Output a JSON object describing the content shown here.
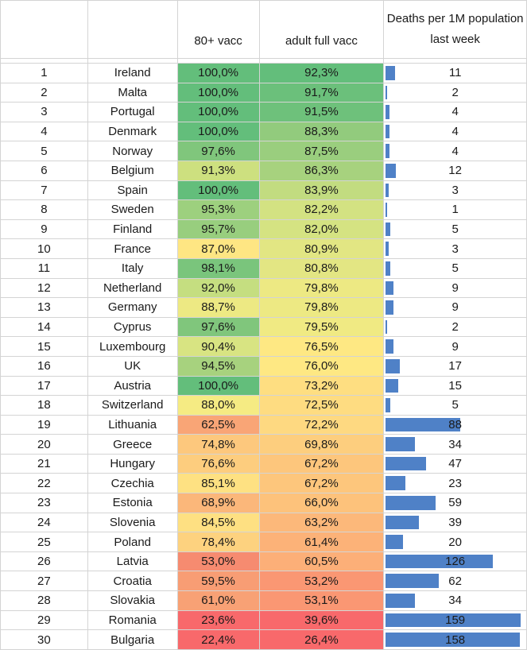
{
  "headers": {
    "rank": "",
    "country": "",
    "vacc80": "80+ vacc",
    "adult": "adult full vacc",
    "deaths": "Deaths per 1M population last week"
  },
  "deaths_max": 159,
  "rows": [
    {
      "rank": "1",
      "country": "Ireland",
      "vacc80": "100,0%",
      "adult": "92,3%",
      "deaths": "11",
      "vacc80_color": "#63be7b",
      "adult_color": "#63be7b"
    },
    {
      "rank": "2",
      "country": "Malta",
      "vacc80": "100,0%",
      "adult": "91,7%",
      "deaths": "2",
      "vacc80_color": "#63be7b",
      "adult_color": "#6bc07b"
    },
    {
      "rank": "3",
      "country": "Portugal",
      "vacc80": "100,0%",
      "adult": "91,5%",
      "deaths": "4",
      "vacc80_color": "#63be7b",
      "adult_color": "#6ec17b"
    },
    {
      "rank": "4",
      "country": "Denmark",
      "vacc80": "100,0%",
      "adult": "88,3%",
      "deaths": "4",
      "vacc80_color": "#63be7b",
      "adult_color": "#92cb7d"
    },
    {
      "rank": "5",
      "country": "Norway",
      "vacc80": "97,6%",
      "adult": "87,5%",
      "deaths": "4",
      "vacc80_color": "#80c67c",
      "adult_color": "#9ace7e"
    },
    {
      "rank": "6",
      "country": "Belgium",
      "vacc80": "91,3%",
      "adult": "86,3%",
      "deaths": "12",
      "vacc80_color": "#cde07f",
      "adult_color": "#a7d27e"
    },
    {
      "rank": "7",
      "country": "Spain",
      "vacc80": "100,0%",
      "adult": "83,9%",
      "deaths": "3",
      "vacc80_color": "#63be7b",
      "adult_color": "#c2dc80"
    },
    {
      "rank": "8",
      "country": "Sweden",
      "vacc80": "95,3%",
      "adult": "82,2%",
      "deaths": "1",
      "vacc80_color": "#9dd07e",
      "adult_color": "#d3e282"
    },
    {
      "rank": "9",
      "country": "Finland",
      "vacc80": "95,7%",
      "adult": "82,0%",
      "deaths": "5",
      "vacc80_color": "#98ce7e",
      "adult_color": "#d5e382"
    },
    {
      "rank": "10",
      "country": "France",
      "vacc80": "87,0%",
      "adult": "80,9%",
      "deaths": "3",
      "vacc80_color": "#fee683",
      "adult_color": "#e2e683"
    },
    {
      "rank": "11",
      "country": "Italy",
      "vacc80": "98,1%",
      "adult": "80,8%",
      "deaths": "5",
      "vacc80_color": "#7ac57c",
      "adult_color": "#e3e683"
    },
    {
      "rank": "12",
      "country": "Netherland",
      "vacc80": "92,0%",
      "adult": "79,8%",
      "deaths": "9",
      "vacc80_color": "#c5de80",
      "adult_color": "#ede983"
    },
    {
      "rank": "13",
      "country": "Germany",
      "vacc80": "88,7%",
      "adult": "79,8%",
      "deaths": "9",
      "vacc80_color": "#ede983",
      "adult_color": "#ede983"
    },
    {
      "rank": "14",
      "country": "Cyprus",
      "vacc80": "97,6%",
      "adult": "79,5%",
      "deaths": "2",
      "vacc80_color": "#80c67c",
      "adult_color": "#f0ea83"
    },
    {
      "rank": "15",
      "country": "Luxembourg",
      "vacc80": "90,4%",
      "adult": "76,5%",
      "deaths": "9",
      "vacc80_color": "#d8e482",
      "adult_color": "#fee883"
    },
    {
      "rank": "16",
      "country": "UK",
      "vacc80": "94,5%",
      "adult": "76,0%",
      "deaths": "17",
      "vacc80_color": "#a7d27e",
      "adult_color": "#fee883"
    },
    {
      "rank": "17",
      "country": "Austria",
      "vacc80": "100,0%",
      "adult": "73,2%",
      "deaths": "15",
      "vacc80_color": "#63be7b",
      "adult_color": "#fede81"
    },
    {
      "rank": "18",
      "country": "Switzerland",
      "vacc80": "88,0%",
      "adult": "72,5%",
      "deaths": "5",
      "vacc80_color": "#f5eb83",
      "adult_color": "#fedc81"
    },
    {
      "rank": "19",
      "country": "Lithuania",
      "vacc80": "62,5%",
      "adult": "72,2%",
      "deaths": "88",
      "vacc80_color": "#f9a576",
      "adult_color": "#fed981"
    },
    {
      "rank": "20",
      "country": "Greece",
      "vacc80": "74,8%",
      "adult": "69,8%",
      "deaths": "34",
      "vacc80_color": "#fdc87d",
      "adult_color": "#fdce7e"
    },
    {
      "rank": "21",
      "country": "Hungary",
      "vacc80": "76,6%",
      "adult": "67,2%",
      "deaths": "47",
      "vacc80_color": "#fdcd7e",
      "adult_color": "#fdc67c"
    },
    {
      "rank": "22",
      "country": "Czechia",
      "vacc80": "85,1%",
      "adult": "67,2%",
      "deaths": "23",
      "vacc80_color": "#fee182",
      "adult_color": "#fdc67c"
    },
    {
      "rank": "23",
      "country": "Estonia",
      "vacc80": "68,9%",
      "adult": "66,0%",
      "deaths": "59",
      "vacc80_color": "#fbb77a",
      "adult_color": "#fdc27b"
    },
    {
      "rank": "24",
      "country": "Slovenia",
      "vacc80": "84,5%",
      "adult": "63,2%",
      "deaths": "39",
      "vacc80_color": "#fee082",
      "adult_color": "#fcb87a"
    },
    {
      "rank": "25",
      "country": "Poland",
      "vacc80": "78,4%",
      "adult": "61,4%",
      "deaths": "20",
      "vacc80_color": "#fdd27f",
      "adult_color": "#fcb278"
    },
    {
      "rank": "26",
      "country": "Latvia",
      "vacc80": "53,0%",
      "adult": "60,5%",
      "deaths": "126",
      "vacc80_color": "#f68b70",
      "adult_color": "#fcaf78"
    },
    {
      "rank": "27",
      "country": "Croatia",
      "vacc80": "59,5%",
      "adult": "53,2%",
      "deaths": "62",
      "vacc80_color": "#f89d74",
      "adult_color": "#fa9773"
    },
    {
      "rank": "28",
      "country": "Slovakia",
      "vacc80": "61,0%",
      "adult": "53,1%",
      "deaths": "34",
      "vacc80_color": "#f8a175",
      "adult_color": "#fa9773"
    },
    {
      "rank": "29",
      "country": "Romania",
      "vacc80": "23,6%",
      "adult": "39,6%",
      "deaths": "159",
      "vacc80_color": "#f8696b",
      "adult_color": "#f8696b"
    },
    {
      "rank": "30",
      "country": "Bulgaria",
      "vacc80": "22,4%",
      "adult": "26,4%",
      "deaths": "158",
      "vacc80_color": "#f8696b",
      "adult_color": "#f8696b"
    }
  ]
}
